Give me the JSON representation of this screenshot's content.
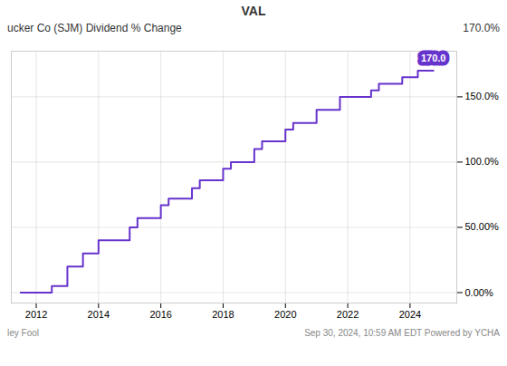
{
  "chart_data": {
    "type": "step",
    "title": "VAL",
    "subtitle": [
      "ucker Co (SJM) Dividend % Change",
      "170.0%"
    ],
    "caption": [
      "ley Fool",
      "Sep 30, 2024, 10:59 AM EDT  Powered by  YCHA"
    ],
    "color": "#6633cc",
    "x": [
      2011.5,
      2012.5,
      2013.0,
      2013.5,
      2014.0,
      2015.0,
      2015.25,
      2016.0,
      2016.25,
      2017.0,
      2017.25,
      2018.0,
      2018.25,
      2019.0,
      2019.25,
      2020.0,
      2020.25,
      2021.0,
      2021.75,
      2022.75,
      2023.0,
      2023.75,
      2024.25,
      2024.75
    ],
    "values": [
      0.0,
      5.0,
      20.0,
      30.0,
      40.0,
      50.0,
      57.0,
      67.0,
      72.0,
      80.0,
      86.0,
      95.0,
      100.0,
      110.0,
      116.0,
      125.0,
      130.0,
      140.0,
      150.0,
      155.0,
      160.0,
      165.0,
      170.0,
      170.0
    ],
    "annotations": [
      {
        "text": "170.0",
        "x": 2024.75,
        "y": 170.0
      }
    ],
    "xlim": [
      2011.2,
      2025.5
    ],
    "xticks": [
      2012,
      2014,
      2016,
      2018,
      2020,
      2022,
      2024
    ],
    "ylim": [
      -8,
      185
    ],
    "yticks": [
      {
        "value": 0,
        "label": "0.00%"
      },
      {
        "value": 50,
        "label": "50.00%"
      },
      {
        "value": 100,
        "label": "100.0%"
      },
      {
        "value": 150,
        "label": "150.0%"
      }
    ],
    "grid": true
  }
}
